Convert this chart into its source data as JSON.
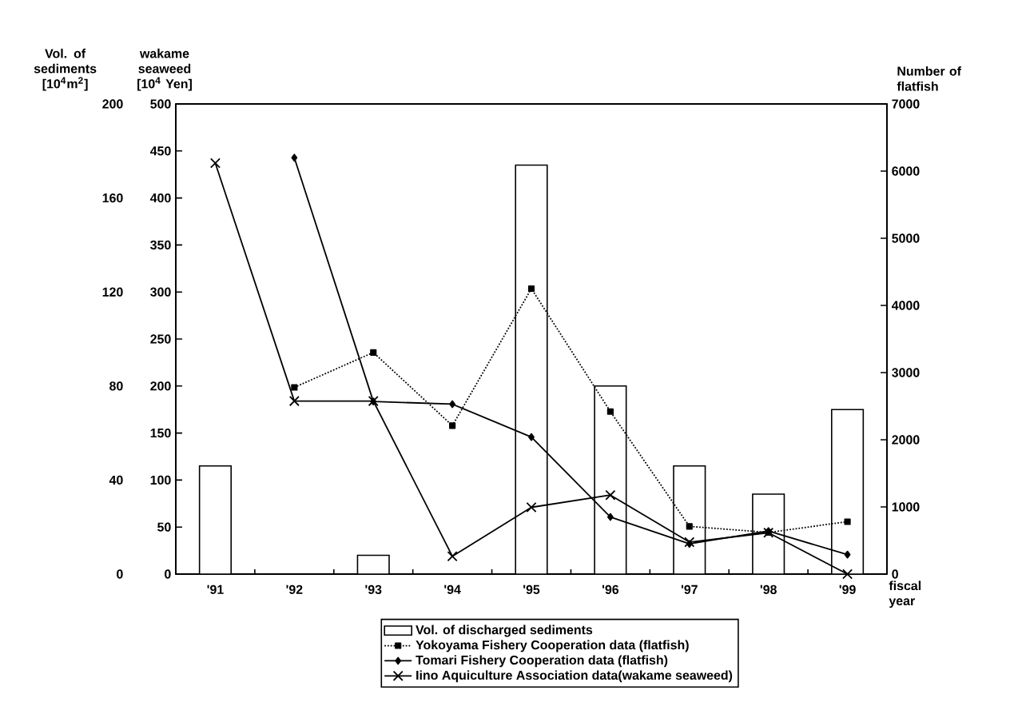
{
  "chart_data": {
    "type": "bar",
    "categories": [
      "'91",
      "'92",
      "'93",
      "'94",
      "'95",
      "'96",
      "'97",
      "'98",
      "'99"
    ],
    "xlabel": "fiscal year",
    "ylabel": "Vol. of sediments [10$^{4}$m$^{2}$]",
    "y2label": "wakame seaweed [10$^{4}$ Yen]",
    "y3label": "Number of flatfish",
    "ylim": [
      0,
      200
    ],
    "yticks": [
      0,
      40,
      80,
      120,
      160,
      200
    ],
    "y2lim": [
      0,
      500
    ],
    "y2ticks": [
      0,
      50,
      100,
      150,
      200,
      250,
      300,
      350,
      400,
      450,
      500
    ],
    "y3lim": [
      0,
      7000
    ],
    "y3ticks": [
      0,
      1000,
      2000,
      3000,
      4000,
      5000,
      6000,
      7000
    ],
    "legend": "bottom",
    "series": [
      {
        "name": "Vol. of discharged sediments",
        "color": "#ffffff",
        "values": [
          46,
          null,
          8,
          null,
          174,
          80,
          46,
          34,
          70
        ]
      },
      {
        "name": "Yokoyama Fishery Cooperation data (flatfish)",
        "type": "line",
        "axis": "y3",
        "color": "#000000",
        "marker": "square",
        "line_style": "dotted",
        "values": [
          null,
          2780,
          3300,
          2210,
          4250,
          2420,
          710,
          620,
          780
        ]
      },
      {
        "name": "Tomari Fishery Cooperation data (flatfish)",
        "type": "line",
        "axis": "y3",
        "color": "#000000",
        "marker": "diamond",
        "line_style": "solid",
        "values": [
          null,
          6200,
          2570,
          2530,
          2040,
          850,
          450,
          640,
          290
        ]
      },
      {
        "name": "Iino Aquiculture Association data(wakame seaweed)",
        "type": "line",
        "axis": "y2",
        "color": "#000000",
        "marker": "cross",
        "line_style": "solid",
        "values": [
          437,
          184,
          184,
          19,
          71,
          84,
          34,
          44,
          0
        ]
      }
    ]
  }
}
